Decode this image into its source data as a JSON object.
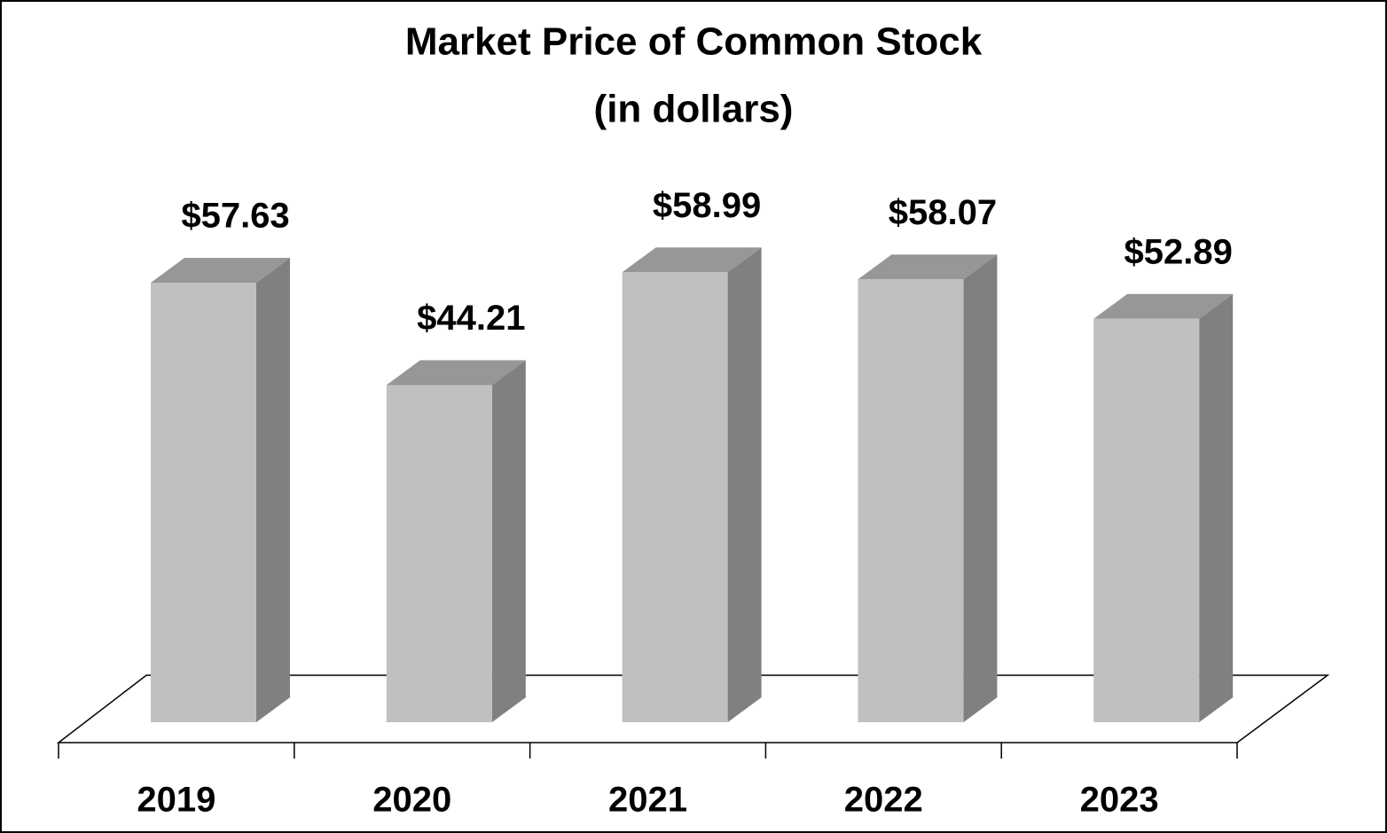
{
  "chart_data": {
    "type": "bar3d",
    "title": "Market Price of Common Stock",
    "subtitle": "(in dollars)",
    "categories": [
      "2019",
      "2020",
      "2021",
      "2022",
      "2023"
    ],
    "values": [
      57.63,
      44.21,
      58.99,
      58.07,
      52.89
    ],
    "value_labels": [
      "$57.63",
      "$44.21",
      "$58.99",
      "$58.07",
      "$52.89"
    ],
    "color": "#c0c0c0"
  }
}
